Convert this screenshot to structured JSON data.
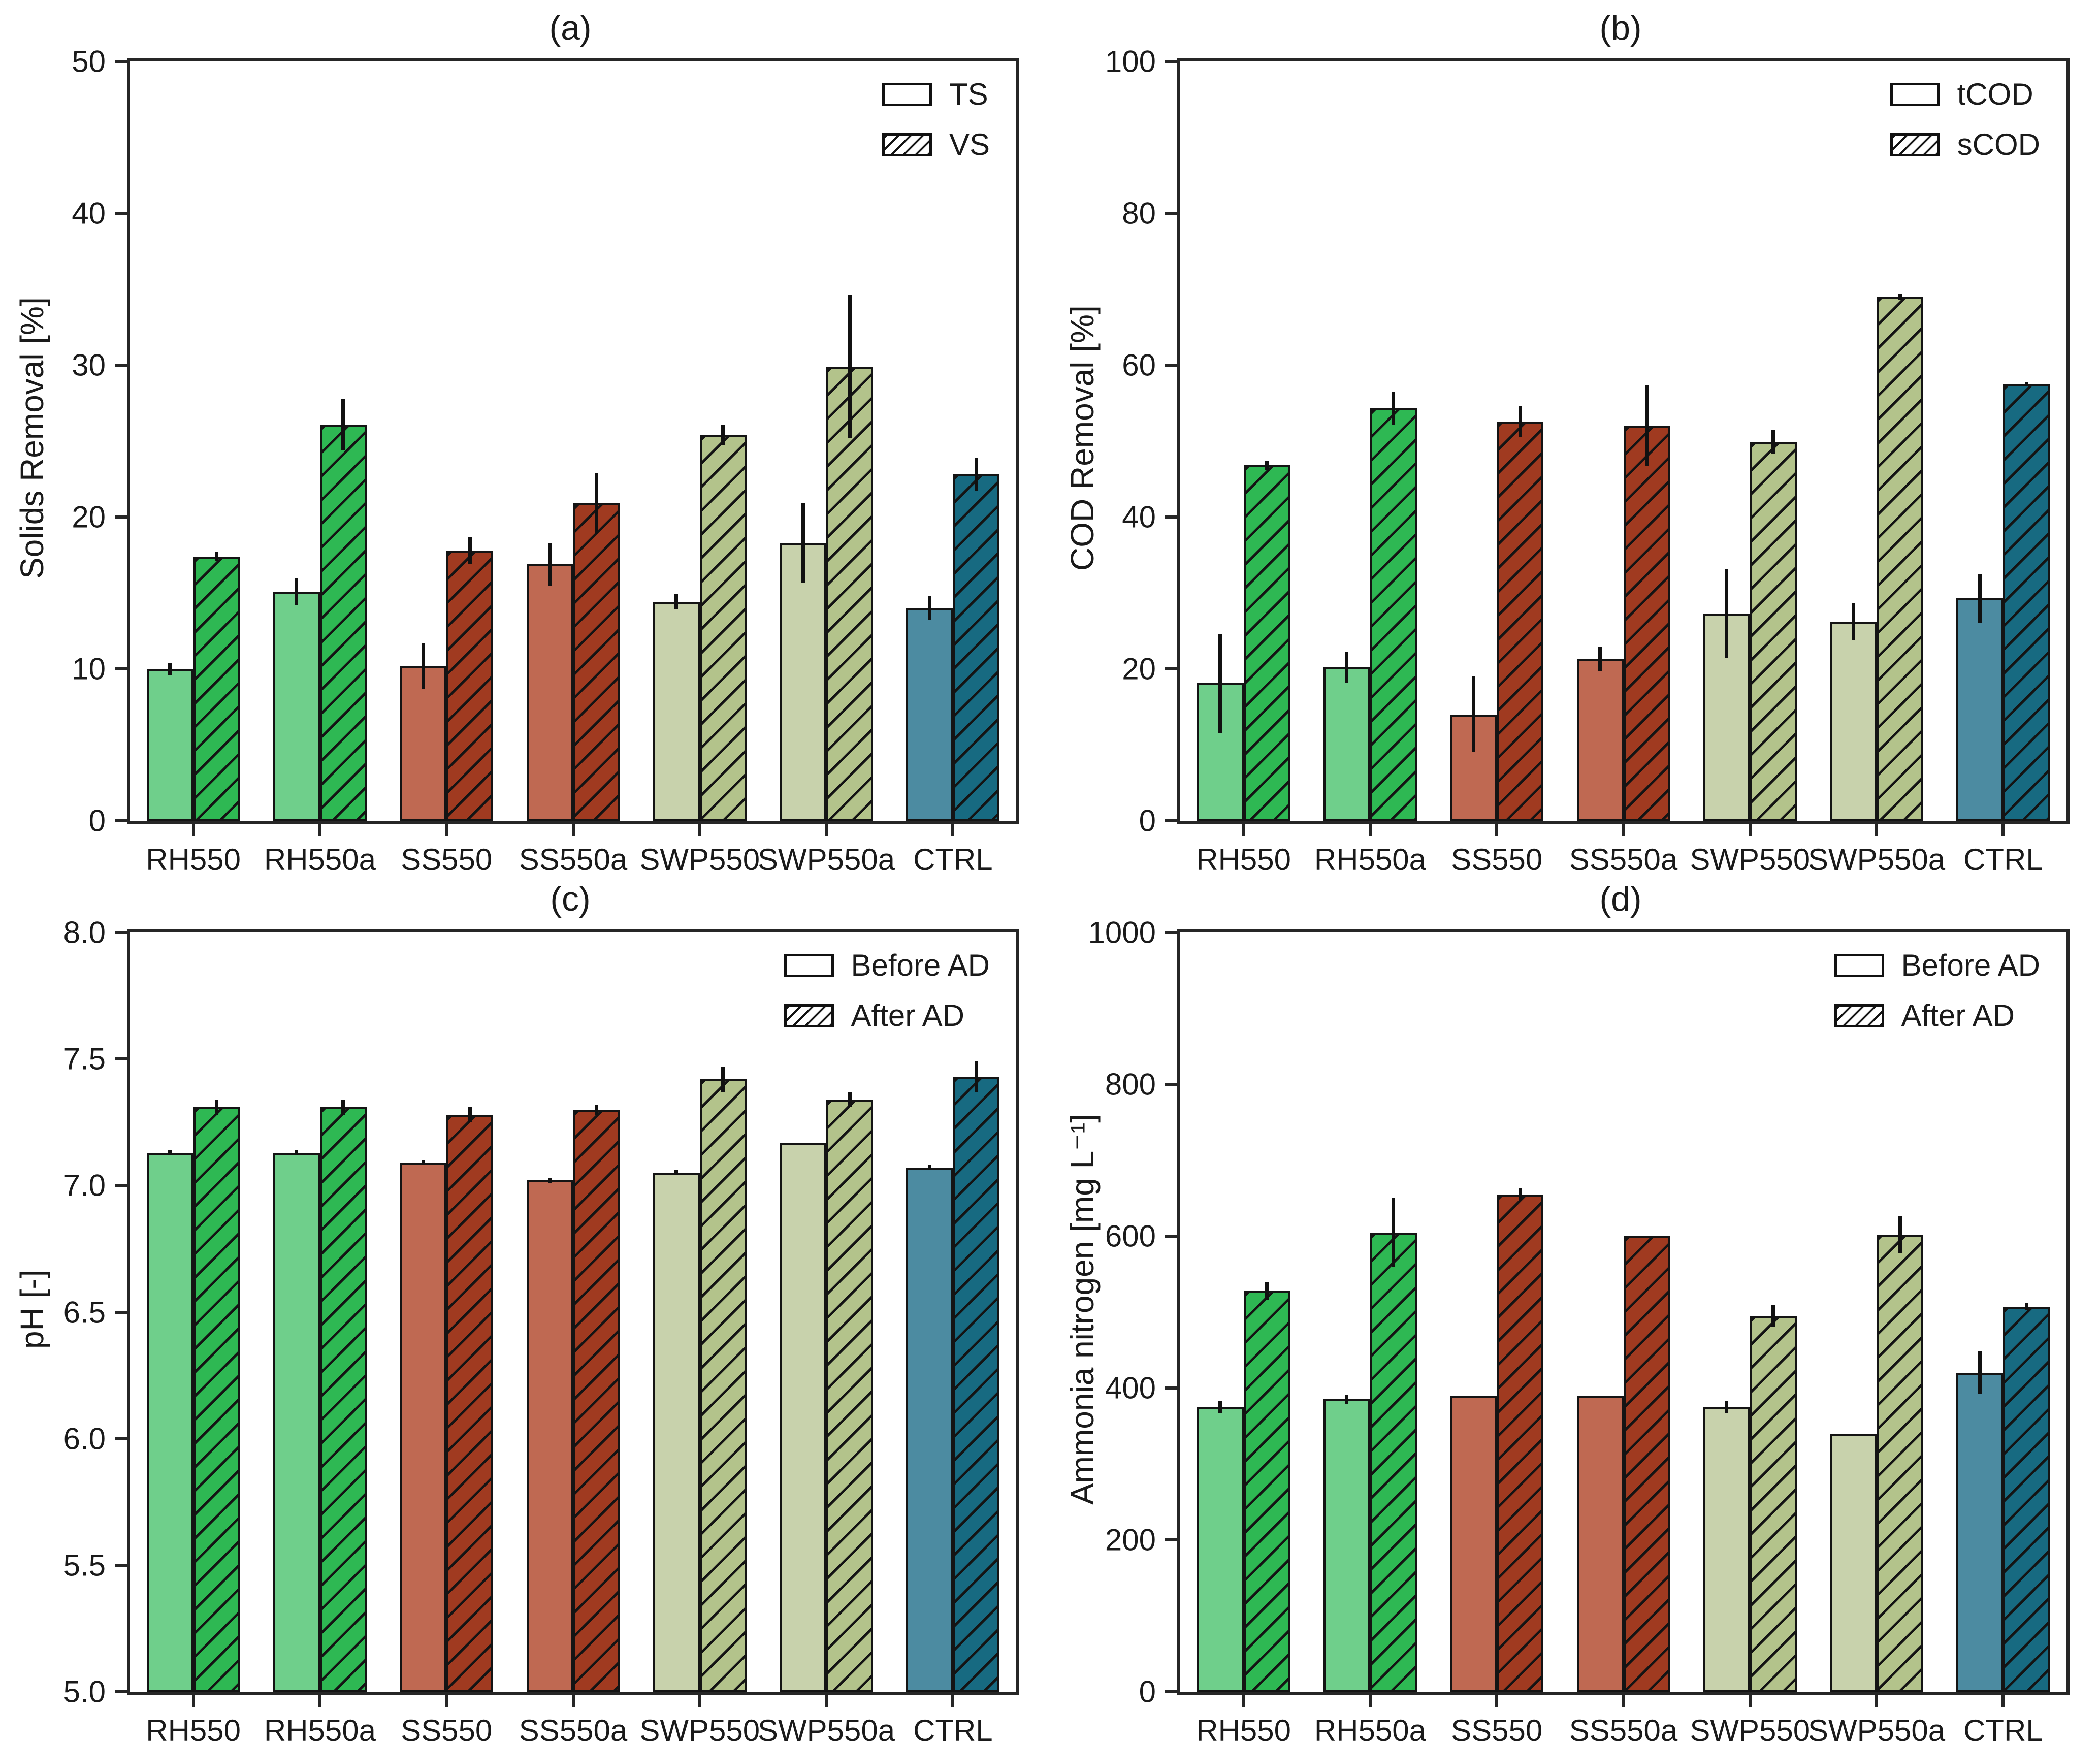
{
  "figure_caption_labels": [
    "(a)",
    "(b)",
    "(c)",
    "(d)"
  ],
  "style": {
    "background": "#ffffff",
    "axis_color": "#262626",
    "bar_edge_color": "#141414",
    "error_bar_color": "#111111",
    "hatch_color": "#141414",
    "category_colors": [
      {
        "plain": "#6fcf8b",
        "hatched": "#2eb853"
      },
      {
        "plain": "#6fcf8b",
        "hatched": "#2eb853"
      },
      {
        "plain": "#bf6952",
        "hatched": "#a03a20"
      },
      {
        "plain": "#bf6952",
        "hatched": "#a03a20"
      },
      {
        "plain": "#c8d2ac",
        "hatched": "#b3c38b"
      },
      {
        "plain": "#c8d2ac",
        "hatched": "#b3c38b"
      },
      {
        "plain": "#4c8ba1",
        "hatched": "#176a81"
      }
    ]
  },
  "chart_data": [
    {
      "type": "bar",
      "title": "(a)",
      "ylabel": "Solids Removal [%]",
      "xlabel": "",
      "ylim": [
        0,
        50
      ],
      "yticks": [
        0,
        10,
        20,
        30,
        40,
        50
      ],
      "ytick_labels": [
        "0",
        "10",
        "20",
        "30",
        "40",
        "50"
      ],
      "grid": false,
      "legend_position": "top-right",
      "categories": [
        "RH550",
        "RH550a",
        "SS550",
        "SS550a",
        "SWP550",
        "SWP550a",
        "CTRL"
      ],
      "series": [
        {
          "name": "TS",
          "hatched": false,
          "values": [
            10.0,
            15.1,
            10.2,
            16.9,
            14.4,
            18.3,
            14.0
          ],
          "errors": [
            0.4,
            0.9,
            1.5,
            1.4,
            0.5,
            2.6,
            0.8
          ]
        },
        {
          "name": "VS",
          "hatched": true,
          "values": [
            17.4,
            26.1,
            17.8,
            20.9,
            25.4,
            29.9,
            22.8
          ],
          "errors": [
            0.3,
            1.7,
            0.9,
            2.0,
            0.7,
            4.7,
            1.1
          ]
        }
      ]
    },
    {
      "type": "bar",
      "title": "(b)",
      "ylabel": "COD Removal [%]",
      "xlabel": "",
      "ylim": [
        0,
        100
      ],
      "yticks": [
        0,
        20,
        40,
        60,
        80,
        100
      ],
      "ytick_labels": [
        "0",
        "20",
        "40",
        "60",
        "80",
        "100"
      ],
      "grid": false,
      "legend_position": "top-right",
      "categories": [
        "RH550",
        "RH550a",
        "SS550",
        "SS550a",
        "SWP550",
        "SWP550a",
        "CTRL"
      ],
      "series": [
        {
          "name": "tCOD",
          "hatched": false,
          "values": [
            18.1,
            20.2,
            14.0,
            21.3,
            27.3,
            26.2,
            29.3
          ],
          "errors": [
            6.5,
            2.1,
            5.0,
            1.6,
            5.8,
            2.4,
            3.2
          ]
        },
        {
          "name": "sCOD",
          "hatched": true,
          "values": [
            46.8,
            54.3,
            52.6,
            52.0,
            49.9,
            69.0,
            57.5
          ],
          "errors": [
            0.6,
            2.2,
            2.0,
            5.3,
            1.6,
            0.4,
            0.3
          ]
        }
      ]
    },
    {
      "type": "bar",
      "title": "(c)",
      "ylabel": "pH [-]",
      "xlabel": "",
      "ylim": [
        5.0,
        8.0
      ],
      "yticks": [
        5.0,
        5.5,
        6.0,
        6.5,
        7.0,
        7.5,
        8.0
      ],
      "ytick_labels": [
        "5.0",
        "5.5",
        "6.0",
        "6.5",
        "7.0",
        "7.5",
        "8.0"
      ],
      "grid": false,
      "legend_position": "top-right",
      "categories": [
        "RH550",
        "RH550a",
        "SS550",
        "SS550a",
        "SWP550",
        "SWP550a",
        "CTRL"
      ],
      "series": [
        {
          "name": "Before AD",
          "hatched": false,
          "values": [
            7.13,
            7.13,
            7.09,
            7.02,
            7.05,
            7.17,
            7.07
          ],
          "errors": [
            0.01,
            0.01,
            0.01,
            0.01,
            0.01,
            0,
            0.01
          ]
        },
        {
          "name": "After AD",
          "hatched": true,
          "values": [
            7.31,
            7.31,
            7.28,
            7.3,
            7.42,
            7.34,
            7.43
          ],
          "errors": [
            0.03,
            0.03,
            0.03,
            0.02,
            0.05,
            0.03,
            0.06
          ]
        }
      ]
    },
    {
      "type": "bar",
      "title": "(d)",
      "ylabel": "Ammonia nitrogen [mg L⁻¹]",
      "xlabel": "",
      "ylim": [
        0,
        1000
      ],
      "yticks": [
        0,
        200,
        400,
        600,
        800,
        1000
      ],
      "ytick_labels": [
        "0",
        "200",
        "400",
        "600",
        "800",
        "1000"
      ],
      "grid": false,
      "legend_position": "top-right",
      "categories": [
        "RH550",
        "RH550a",
        "SS550",
        "SS550a",
        "SWP550",
        "SWP550a",
        "CTRL"
      ],
      "series": [
        {
          "name": "Before AD",
          "hatched": false,
          "values": [
            375,
            385,
            390,
            390,
            375,
            340,
            420
          ],
          "errors": [
            8,
            6,
            0,
            0,
            8,
            0,
            28
          ]
        },
        {
          "name": "After AD",
          "hatched": true,
          "values": [
            528,
            605,
            655,
            600,
            495,
            602,
            507
          ],
          "errors": [
            12,
            45,
            8,
            0,
            15,
            25,
            5
          ]
        }
      ]
    }
  ]
}
